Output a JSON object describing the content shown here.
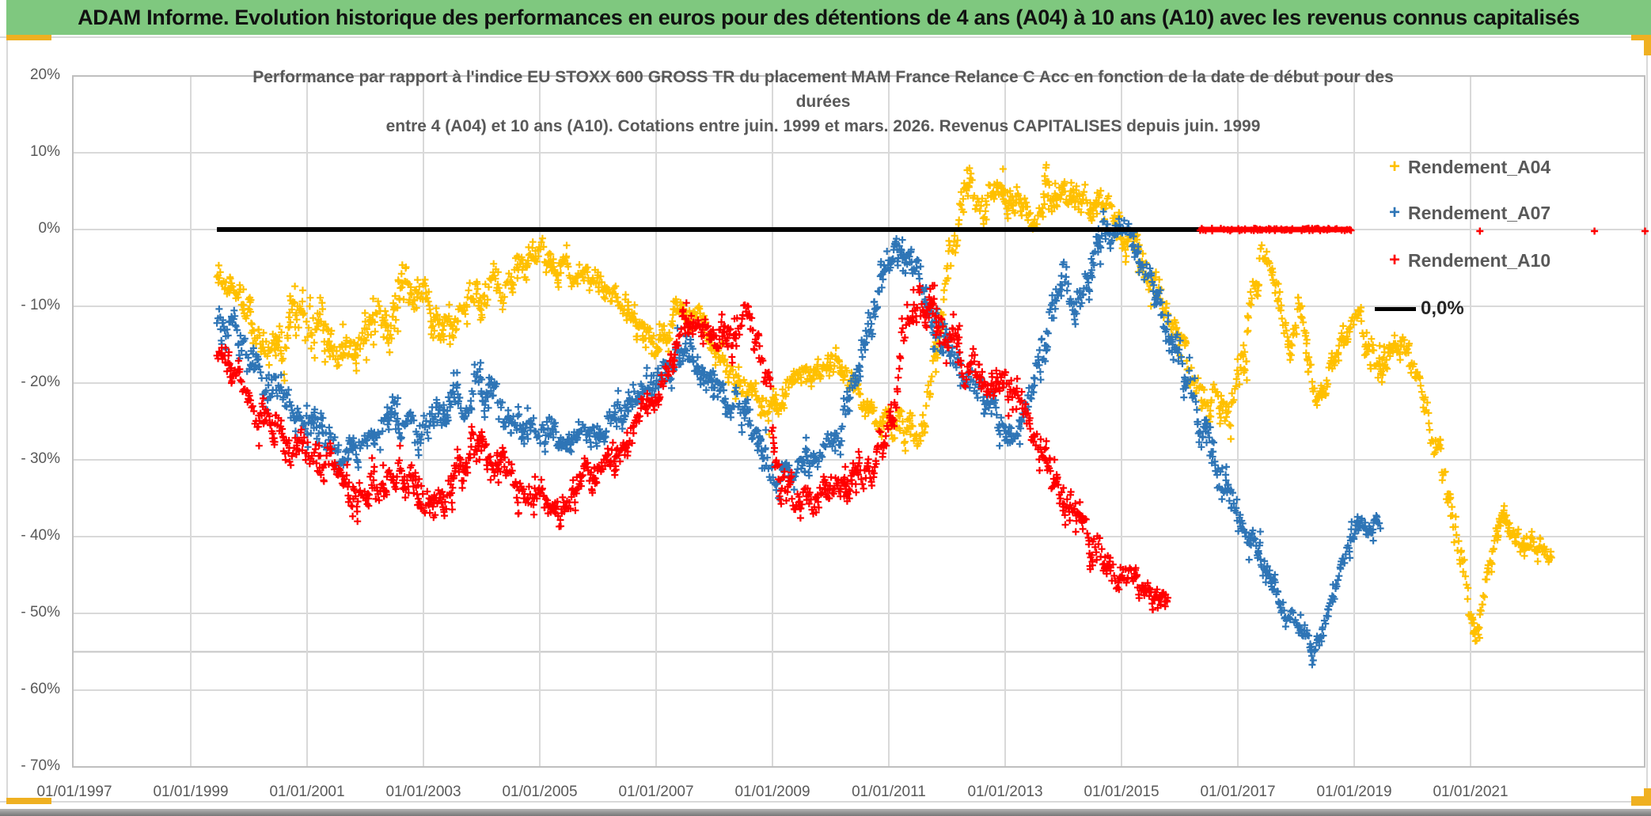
{
  "banner": {
    "title": "ADAM Informe. Evolution historique des performances en euros pour des détentions de 4 ans (A04) à 10 ans (A10) avec les revenus connus capitalisés"
  },
  "chart_data": {
    "type": "scatter",
    "title_lines": [
      "Performance par rapport à l'indice EU STOXX 600 GROSS TR  du placement MAM France Relance C Acc en fonction de la date de début pour des",
      "durées",
      "entre 4 (A04) et 10 ans (A10). Cotations entre juin. 1999 et mars. 2026. Revenus CAPITALISES depuis juin. 1999"
    ],
    "x_axis": {
      "tick_years": [
        1997,
        1999,
        2001,
        2003,
        2005,
        2007,
        2009,
        2011,
        2013,
        2015,
        2017,
        2019,
        2021
      ],
      "tick_labels": [
        "01/01/1997",
        "01/01/1999",
        "01/01/2001",
        "01/01/2003",
        "01/01/2005",
        "01/01/2007",
        "01/01/2009",
        "01/01/2011",
        "01/01/2013",
        "01/01/2015",
        "01/01/2017",
        "01/01/2019",
        "01/01/2021"
      ],
      "min_year": 1997,
      "max_year": 2024
    },
    "y_axis": {
      "tick_values": [
        20,
        10,
        0,
        -10,
        -20,
        -30,
        -40,
        -50,
        -60,
        -70
      ],
      "tick_labels": [
        "20%",
        "10%",
        "0%",
        "- 10%",
        "- 20%",
        "- 30%",
        "- 40%",
        "- 50%",
        "- 60%",
        "- 70%"
      ],
      "extra_grid_value": -55,
      "min": -70,
      "max": 20,
      "grid": true
    },
    "legend_position": "top-right-inside",
    "series": [
      {
        "name": "Rendement_A04",
        "color": "#FFC000",
        "marker": "plus",
        "start": 1999.45,
        "end": 2022.4,
        "keyframes": [
          [
            1999.45,
            -5.5,
            2.5
          ],
          [
            1999.8,
            -8,
            3
          ],
          [
            2000.1,
            -13,
            3.5
          ],
          [
            2000.45,
            -16,
            4
          ],
          [
            2000.75,
            -12.5,
            4
          ],
          [
            2001.0,
            -10.5,
            5
          ],
          [
            2001.3,
            -14.5,
            4
          ],
          [
            2001.6,
            -17,
            3.5
          ],
          [
            2001.95,
            -13.5,
            4
          ],
          [
            2002.3,
            -11.5,
            4
          ],
          [
            2002.55,
            -8,
            4
          ],
          [
            2002.75,
            -5,
            4.5
          ],
          [
            2003.05,
            -9.5,
            4
          ],
          [
            2003.3,
            -11,
            3.5
          ],
          [
            2003.65,
            -10,
            3
          ],
          [
            2004.0,
            -9,
            3
          ],
          [
            2004.4,
            -7.5,
            3
          ],
          [
            2004.75,
            -3.5,
            2.5
          ],
          [
            2005.0,
            -2.5,
            2.5
          ],
          [
            2005.3,
            -4.5,
            2
          ],
          [
            2005.7,
            -6,
            2
          ],
          [
            2006.1,
            -7,
            2
          ],
          [
            2006.5,
            -11.5,
            2.2
          ],
          [
            2006.9,
            -15,
            2.5
          ],
          [
            2007.1,
            -14,
            2.5
          ],
          [
            2007.35,
            -10.5,
            2
          ],
          [
            2007.8,
            -13,
            2.5
          ],
          [
            2008.2,
            -17,
            3
          ],
          [
            2008.6,
            -21.5,
            2
          ],
          [
            2009.0,
            -24,
            2.5
          ],
          [
            2009.5,
            -18.5,
            2
          ],
          [
            2010.0,
            -17.5,
            2
          ],
          [
            2010.5,
            -21,
            2.5
          ],
          [
            2010.8,
            -25.5,
            1.8
          ],
          [
            2011.15,
            -24.5,
            3
          ],
          [
            2011.5,
            -26.5,
            2.5
          ],
          [
            2011.8,
            -17,
            4
          ],
          [
            2012.05,
            -4,
            4
          ],
          [
            2012.3,
            4.5,
            3.5
          ],
          [
            2012.6,
            3.5,
            3
          ],
          [
            2013.0,
            4,
            3
          ],
          [
            2013.3,
            4.5,
            3
          ],
          [
            2013.55,
            1.5,
            2.5
          ],
          [
            2013.7,
            6,
            3.5
          ],
          [
            2014.0,
            5,
            2.5
          ],
          [
            2014.4,
            4,
            3
          ],
          [
            2014.8,
            2,
            2.5
          ],
          [
            2015.05,
            -1,
            3
          ],
          [
            2015.4,
            -4.5,
            3
          ],
          [
            2015.7,
            -11.5,
            3
          ],
          [
            2016.0,
            -15.5,
            3
          ],
          [
            2016.4,
            -21.5,
            3
          ],
          [
            2016.8,
            -23.5,
            3
          ],
          [
            2017.1,
            -16,
            4
          ],
          [
            2017.45,
            0,
            4
          ],
          [
            2017.65,
            -8.5,
            3
          ],
          [
            2017.9,
            -16.5,
            3
          ],
          [
            2018.05,
            -9,
            3
          ],
          [
            2018.35,
            -22.5,
            2.5
          ],
          [
            2018.65,
            -17,
            2
          ],
          [
            2018.9,
            -13.5,
            1.8
          ],
          [
            2019.1,
            -10.5,
            2.5
          ],
          [
            2019.3,
            -17.5,
            4.5
          ],
          [
            2019.6,
            -15.5,
            2
          ],
          [
            2019.9,
            -15,
            1.8
          ],
          [
            2020.2,
            -22,
            3
          ],
          [
            2020.5,
            -30,
            3
          ],
          [
            2020.75,
            -40,
            3
          ],
          [
            2021.0,
            -49,
            3
          ],
          [
            2021.1,
            -52.5,
            2
          ],
          [
            2021.25,
            -46,
            3
          ],
          [
            2021.4,
            -41,
            2
          ],
          [
            2021.55,
            -38,
            1.8
          ],
          [
            2021.75,
            -40.5,
            1.8
          ],
          [
            2022.0,
            -42,
            1.8
          ],
          [
            2022.2,
            -41,
            1.8
          ],
          [
            2022.4,
            -42.5,
            1.2
          ]
        ]
      },
      {
        "name": "Rendement_A07",
        "color": "#2E75B6",
        "marker": "plus",
        "start": 1999.45,
        "end": 2019.45,
        "keyframes": [
          [
            1999.45,
            -11,
            3
          ],
          [
            1999.9,
            -16,
            3.5
          ],
          [
            2000.3,
            -21,
            3.5
          ],
          [
            2000.7,
            -23.5,
            3
          ],
          [
            2001.1,
            -26,
            3
          ],
          [
            2001.5,
            -27.5,
            3
          ],
          [
            2001.9,
            -29.5,
            3
          ],
          [
            2002.3,
            -26,
            3.5
          ],
          [
            2002.7,
            -24,
            3.5
          ],
          [
            2003.1,
            -27,
            3.5
          ],
          [
            2003.5,
            -22.5,
            3
          ],
          [
            2003.9,
            -20.5,
            3
          ],
          [
            2004.3,
            -24,
            3
          ],
          [
            2004.7,
            -26.5,
            3
          ],
          [
            2005.1,
            -27,
            3
          ],
          [
            2005.5,
            -27.5,
            2.5
          ],
          [
            2005.9,
            -26.5,
            2.5
          ],
          [
            2006.3,
            -24,
            2.5
          ],
          [
            2006.7,
            -21.5,
            2.5
          ],
          [
            2007.1,
            -18,
            2.5
          ],
          [
            2007.5,
            -16.5,
            2.5
          ],
          [
            2008.0,
            -20.5,
            2.5
          ],
          [
            2008.5,
            -24.5,
            2.5
          ],
          [
            2009.0,
            -32,
            3.5
          ],
          [
            2009.4,
            -33,
            2.5
          ],
          [
            2009.8,
            -30,
            2.5
          ],
          [
            2010.2,
            -24.5,
            3
          ],
          [
            2010.6,
            -15,
            3.5
          ],
          [
            2010.9,
            -6,
            3.5
          ],
          [
            2011.05,
            -2.5,
            3
          ],
          [
            2011.35,
            -5.5,
            3
          ],
          [
            2011.65,
            -9.5,
            4
          ],
          [
            2012.0,
            -16,
            4
          ],
          [
            2012.4,
            -21,
            3
          ],
          [
            2012.8,
            -24.5,
            3
          ],
          [
            2013.2,
            -26.5,
            3
          ],
          [
            2013.6,
            -16.5,
            4
          ],
          [
            2013.95,
            -6.5,
            3.5
          ],
          [
            2014.2,
            -9.5,
            3
          ],
          [
            2014.55,
            -3,
            3
          ],
          [
            2014.85,
            0.5,
            3
          ],
          [
            2015.1,
            -1.5,
            2.5
          ],
          [
            2015.45,
            -6.5,
            3
          ],
          [
            2015.8,
            -14,
            3.5
          ],
          [
            2016.2,
            -21,
            3.5
          ],
          [
            2016.6,
            -30,
            3.5
          ],
          [
            2017.0,
            -39,
            3
          ],
          [
            2017.4,
            -44,
            2.5
          ],
          [
            2017.8,
            -50.5,
            2.5
          ],
          [
            2018.1,
            -52.5,
            2
          ],
          [
            2018.3,
            -56,
            1.8
          ],
          [
            2018.6,
            -48,
            2
          ],
          [
            2018.9,
            -42,
            2
          ],
          [
            2019.05,
            -37,
            1.5
          ],
          [
            2019.25,
            -39.5,
            1.5
          ],
          [
            2019.45,
            -38,
            1.5
          ]
        ]
      },
      {
        "name": "Rendement_A10",
        "color": "#FF0000",
        "marker": "plus",
        "start": 1999.45,
        "end": 2015.8,
        "keyframes": [
          [
            1999.45,
            -16.5,
            1.5
          ],
          [
            1999.8,
            -20,
            2.5
          ],
          [
            2000.2,
            -24,
            3
          ],
          [
            2000.6,
            -27,
            3
          ],
          [
            2001.0,
            -29.5,
            3
          ],
          [
            2001.4,
            -31,
            3.5
          ],
          [
            2001.9,
            -33.5,
            3.5
          ],
          [
            2002.3,
            -32,
            3
          ],
          [
            2002.6,
            -31.5,
            2.5
          ],
          [
            2003.0,
            -35,
            3.5
          ],
          [
            2003.2,
            -38,
            3
          ],
          [
            2003.6,
            -31.5,
            3
          ],
          [
            2004.0,
            -28.5,
            3
          ],
          [
            2004.4,
            -30,
            3
          ],
          [
            2004.8,
            -34,
            3.5
          ],
          [
            2005.2,
            -37,
            2.5
          ],
          [
            2005.6,
            -34.5,
            2.5
          ],
          [
            2006.0,
            -31,
            2.5
          ],
          [
            2006.4,
            -28.5,
            2.5
          ],
          [
            2006.8,
            -24,
            2.5
          ],
          [
            2007.2,
            -17.5,
            2.5
          ],
          [
            2007.5,
            -12.5,
            2.5
          ],
          [
            2007.8,
            -13.5,
            2.5
          ],
          [
            2008.2,
            -13,
            3
          ],
          [
            2008.6,
            -11.5,
            3
          ],
          [
            2008.9,
            -20,
            5
          ],
          [
            2009.1,
            -33,
            3.5
          ],
          [
            2009.5,
            -35.5,
            2.5
          ],
          [
            2009.9,
            -34,
            2.5
          ],
          [
            2010.3,
            -33,
            2.5
          ],
          [
            2010.7,
            -31.5,
            2.5
          ],
          [
            2011.0,
            -26,
            3
          ],
          [
            2011.3,
            -12,
            4
          ],
          [
            2011.5,
            -8.5,
            3
          ],
          [
            2011.9,
            -13,
            3.5
          ],
          [
            2012.3,
            -19,
            3.5
          ],
          [
            2012.6,
            -17.5,
            3
          ],
          [
            2013.0,
            -20,
            3.5
          ],
          [
            2013.3,
            -23,
            3
          ],
          [
            2013.5,
            -28,
            3
          ],
          [
            2013.8,
            -32,
            3
          ],
          [
            2014.1,
            -36,
            3
          ],
          [
            2014.5,
            -41,
            3
          ],
          [
            2014.8,
            -43.5,
            2.5
          ],
          [
            2015.1,
            -45.5,
            2.5
          ],
          [
            2015.4,
            -47,
            2.5
          ],
          [
            2015.8,
            -48.5,
            1.8
          ]
        ]
      }
    ],
    "zero_line": {
      "label": "0,0%",
      "color": "#000000",
      "value": 0,
      "start_year": 1999.45,
      "end_year": 2016.45
    },
    "red_zero_segment": {
      "value": 0,
      "color": "#FF0000",
      "start_year": 2016.35,
      "end_year": 2018.95,
      "isolated_point_years": [
        2021.16,
        2023.13,
        2024.0
      ]
    }
  },
  "colors": {
    "banner_green": "#7fc87f",
    "accent_gold": "#efb021",
    "grid": "#d9d9d9",
    "axis_text": "#595959",
    "series_a04": "#FFC000",
    "series_a07": "#2E75B6",
    "series_a10": "#FF0000"
  }
}
